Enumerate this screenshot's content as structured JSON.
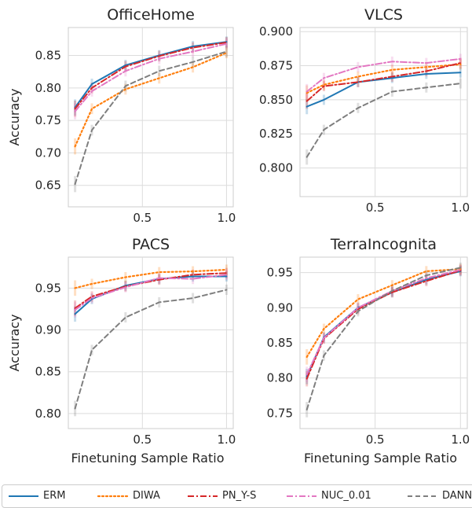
{
  "chart_data": [
    {
      "type": "line",
      "title": "OfficeHome",
      "xlabel": "",
      "ylabel": "Accuracy",
      "xlim": [
        0.06,
        1.04
      ],
      "ylim": [
        0.617,
        0.893
      ],
      "xticks": [
        "0.5",
        "1.0"
      ],
      "yticks": [
        "0.65",
        "0.70",
        "0.75",
        "0.80",
        "0.85"
      ],
      "x": [
        0.1,
        0.2,
        0.4,
        0.6,
        0.8,
        1.0
      ],
      "series": [
        {
          "name": "ERM",
          "values": [
            0.77,
            0.806,
            0.835,
            0.85,
            0.864,
            0.871
          ]
        },
        {
          "name": "DIWA",
          "values": [
            0.71,
            0.768,
            0.798,
            0.815,
            0.832,
            0.854
          ]
        },
        {
          "name": "PN_Y-S",
          "values": [
            0.768,
            0.8,
            0.833,
            0.849,
            0.862,
            0.87
          ]
        },
        {
          "name": "NUC_0.01",
          "values": [
            0.764,
            0.795,
            0.826,
            0.845,
            0.856,
            0.868
          ]
        },
        {
          "name": "DANN",
          "values": [
            0.652,
            0.735,
            0.803,
            0.826,
            0.84,
            0.856
          ]
        }
      ],
      "grid": true
    },
    {
      "type": "line",
      "title": "VLCS",
      "xlabel": "",
      "ylabel": "",
      "xlim": [
        0.06,
        1.04
      ],
      "ylim": [
        0.779,
        0.903
      ],
      "xticks": [
        "0.5",
        "1.0"
      ],
      "yticks": [
        "0.800",
        "0.825",
        "0.850",
        "0.875",
        "0.900"
      ],
      "x": [
        0.1,
        0.2,
        0.4,
        0.6,
        0.8,
        1.0
      ],
      "series": [
        {
          "name": "ERM",
          "values": [
            0.845,
            0.85,
            0.863,
            0.866,
            0.869,
            0.87
          ]
        },
        {
          "name": "DIWA",
          "values": [
            0.855,
            0.861,
            0.867,
            0.872,
            0.874,
            0.876
          ]
        },
        {
          "name": "PN_Y-S",
          "values": [
            0.849,
            0.86,
            0.863,
            0.867,
            0.871,
            0.877
          ]
        },
        {
          "name": "NUC_0.01",
          "values": [
            0.856,
            0.866,
            0.874,
            0.878,
            0.877,
            0.88
          ]
        },
        {
          "name": "DANN",
          "values": [
            0.808,
            0.828,
            0.844,
            0.856,
            0.859,
            0.862
          ]
        }
      ],
      "grid": true
    },
    {
      "type": "line",
      "title": "PACS",
      "xlabel": "Finetuning Sample Ratio",
      "ylabel": "Accuracy",
      "xlim": [
        0.06,
        1.04
      ],
      "ylim": [
        0.782,
        0.987
      ],
      "xticks": [
        "0.5",
        "1.0"
      ],
      "yticks": [
        "0.80",
        "0.85",
        "0.90",
        "0.95"
      ],
      "x": [
        0.1,
        0.2,
        0.4,
        0.6,
        0.8,
        1.0
      ],
      "series": [
        {
          "name": "ERM",
          "values": [
            0.919,
            0.937,
            0.953,
            0.961,
            0.964,
            0.964
          ]
        },
        {
          "name": "DIWA",
          "values": [
            0.95,
            0.955,
            0.963,
            0.969,
            0.97,
            0.972
          ]
        },
        {
          "name": "PN_Y-S",
          "values": [
            0.926,
            0.94,
            0.952,
            0.96,
            0.966,
            0.968
          ]
        },
        {
          "name": "NUC_0.01",
          "values": [
            0.924,
            0.938,
            0.951,
            0.962,
            0.961,
            0.966
          ]
        },
        {
          "name": "DANN",
          "values": [
            0.806,
            0.876,
            0.915,
            0.933,
            0.938,
            0.948
          ]
        }
      ],
      "grid": true
    },
    {
      "type": "line",
      "title": "TerraIncognita",
      "xlabel": "Finetuning Sample Ratio",
      "ylabel": "",
      "xlim": [
        0.06,
        1.04
      ],
      "ylim": [
        0.728,
        0.972
      ],
      "xticks": [
        "0.5",
        "1.0"
      ],
      "yticks": [
        "0.75",
        "0.80",
        "0.85",
        "0.90",
        "0.95"
      ],
      "x": [
        0.1,
        0.2,
        0.4,
        0.6,
        0.8,
        1.0
      ],
      "series": [
        {
          "name": "ERM",
          "values": [
            0.802,
            0.858,
            0.9,
            0.922,
            0.94,
            0.952
          ]
        },
        {
          "name": "DIWA",
          "values": [
            0.83,
            0.87,
            0.912,
            0.932,
            0.952,
            0.955
          ]
        },
        {
          "name": "PN_Y-S",
          "values": [
            0.799,
            0.856,
            0.898,
            0.922,
            0.938,
            0.953
          ]
        },
        {
          "name": "NUC_0.01",
          "values": [
            0.805,
            0.857,
            0.9,
            0.924,
            0.942,
            0.954
          ]
        },
        {
          "name": "DANN",
          "values": [
            0.755,
            0.832,
            0.895,
            0.924,
            0.946,
            0.957
          ]
        }
      ],
      "grid": true
    }
  ],
  "legend": {
    "entries": [
      {
        "label": "ERM",
        "color": "#1f77b4",
        "style": "solid"
      },
      {
        "label": "DIWA",
        "color": "#ff7f0e",
        "style": "dotted"
      },
      {
        "label": "PN_Y-S",
        "color": "#d62728",
        "style": "dashdot"
      },
      {
        "label": "NUC_0.01",
        "color": "#e377c2",
        "style": "dashdot"
      },
      {
        "label": "DANN",
        "color": "#7f7f7f",
        "style": "dashed"
      }
    ],
    "placement": "bottom"
  }
}
